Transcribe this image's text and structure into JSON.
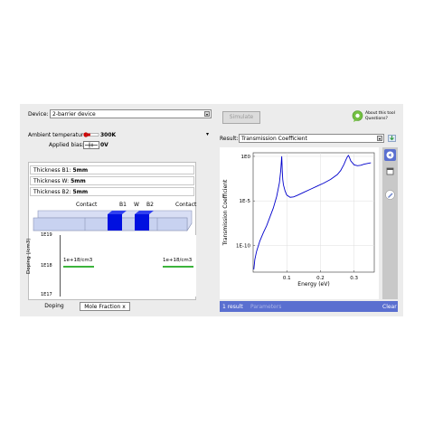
{
  "device": {
    "label": "Device:",
    "value": "2-barrier device"
  },
  "ambient_temperature": {
    "label": "Ambient temperature:",
    "value": "300K",
    "level_fraction": 0.3
  },
  "applied_bias": {
    "label": "Applied bias:",
    "value": "0V"
  },
  "thickness": [
    {
      "label": "Thickness B1:",
      "value": "5mm"
    },
    {
      "label": "Thickness W:",
      "value": "5mm"
    },
    {
      "label": "Thickness B2:",
      "value": "5mm"
    }
  ],
  "structure": {
    "contact_left": "Contact",
    "b1": "B1",
    "w": "W",
    "b2": "B2",
    "contact_right": "Contact",
    "barrier_color": "#0010e0",
    "bar_color": "#c8d2f0"
  },
  "doping_plot": {
    "ylabel": "Doping (/cm3)",
    "ticks": [
      "1E19",
      "1E18",
      "1E17"
    ],
    "left_value": "1e+18/cm3",
    "right_value": "1e+18/cm3",
    "line_color": "#3cb43c"
  },
  "bottom_tabs": [
    {
      "label": "Doping"
    },
    {
      "label": "Mole Fraction x"
    }
  ],
  "toolbar": {
    "simulate_label": "Simulate",
    "about_line1": "About this tool",
    "about_line2": "Questions?"
  },
  "result": {
    "label": "Result:",
    "value": "Transmission Coefficient"
  },
  "chart_data": {
    "type": "line",
    "title": "",
    "xlabel": "Energy (eV)",
    "ylabel": "Transmission Coefficient",
    "x_ticks": [
      0.1,
      0.2,
      0.3
    ],
    "y_ticks": [
      "1E0",
      "1E-5",
      "1E-10"
    ],
    "xlim": [
      0,
      0.36
    ],
    "ylim_log10": [
      -13,
      0.4
    ],
    "grid": true,
    "line_color": "#0000cc",
    "series": [
      {
        "x": [
          0.002,
          0.005,
          0.01,
          0.02,
          0.03,
          0.04,
          0.05,
          0.06,
          0.07,
          0.078,
          0.082,
          0.084,
          0.085,
          0.0855,
          0.0865,
          0.088,
          0.09,
          0.095,
          0.1,
          0.11,
          0.12,
          0.13,
          0.15,
          0.17,
          0.19,
          0.21,
          0.23,
          0.25,
          0.26,
          0.27,
          0.275,
          0.28,
          0.283,
          0.286,
          0.29,
          0.3,
          0.31,
          0.32,
          0.33,
          0.34,
          0.35
        ],
        "log10y": [
          -12.7,
          -11.6,
          -10.7,
          -9.5,
          -8.6,
          -7.8,
          -6.8,
          -5.8,
          -4.5,
          -3.0,
          -1.6,
          -0.5,
          0.0,
          -0.5,
          -1.6,
          -2.6,
          -3.2,
          -3.9,
          -4.35,
          -4.6,
          -4.55,
          -4.4,
          -4.05,
          -3.7,
          -3.35,
          -3.0,
          -2.6,
          -2.05,
          -1.6,
          -0.9,
          -0.45,
          -0.05,
          0.1,
          -0.1,
          -0.5,
          -0.95,
          -1.05,
          -1.0,
          -0.88,
          -0.8,
          -0.72
        ]
      }
    ]
  },
  "status": {
    "count": "1 result",
    "parameters": "Parameters",
    "clear": "Clear"
  },
  "colors": {
    "accent": "#5a6fd0",
    "sidebar": "#c8c8c8"
  }
}
